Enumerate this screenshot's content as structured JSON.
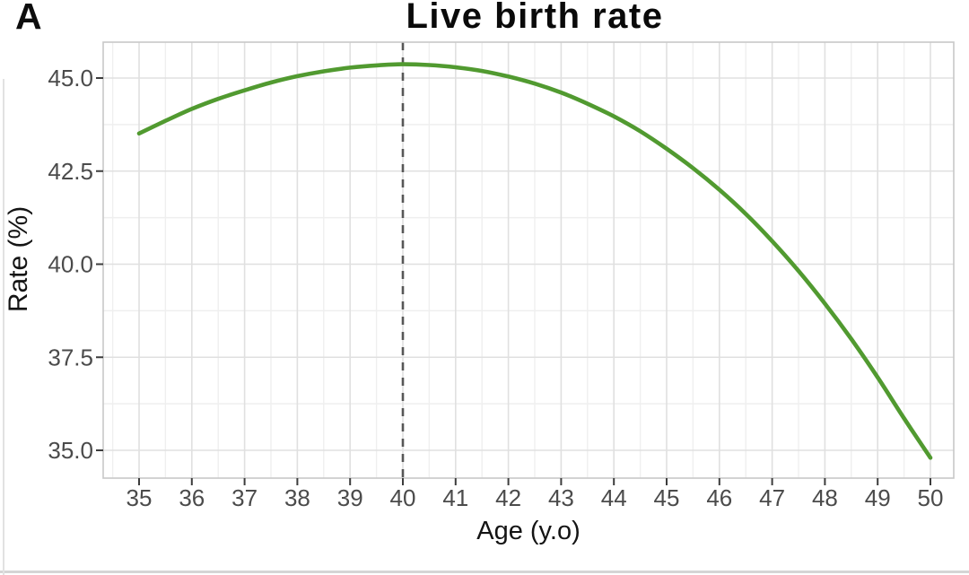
{
  "panel_label": "A",
  "chart_data": {
    "type": "line",
    "title": "Live birth rate",
    "xlabel": "Age (y.o)",
    "ylabel": "Rate (%)",
    "x_ticks": [
      35,
      36,
      37,
      38,
      39,
      40,
      41,
      42,
      43,
      44,
      45,
      46,
      47,
      48,
      49,
      50
    ],
    "y_ticks": [
      35,
      37.5,
      40,
      42.5,
      45
    ],
    "y_tick_labels": [
      "35.0",
      "37.5",
      "40.0",
      "42.5",
      "45.0"
    ],
    "xlim": [
      34.32,
      50.44
    ],
    "ylim": [
      34.25,
      45.96
    ],
    "grid": "major and minor gridlines, light gray, ggplot theme",
    "legend": "none",
    "reference_line": {
      "orientation": "vertical",
      "x": 40,
      "style": "dashed"
    },
    "series": [
      {
        "name": "Live birth rate",
        "color": "#519a30",
        "x": [
          35,
          35.5,
          36,
          36.5,
          37,
          37.5,
          38,
          38.5,
          39,
          39.5,
          40,
          40.5,
          41,
          41.5,
          42,
          42.5,
          43,
          43.5,
          44,
          44.5,
          45,
          45.5,
          46,
          46.5,
          47,
          47.5,
          48,
          48.5,
          49,
          49.5,
          50
        ],
        "y": [
          43.51,
          43.85,
          44.17,
          44.44,
          44.67,
          44.88,
          45.05,
          45.18,
          45.28,
          45.34,
          45.37,
          45.35,
          45.29,
          45.19,
          45.04,
          44.85,
          44.61,
          44.31,
          43.97,
          43.57,
          43.1,
          42.58,
          42.0,
          41.35,
          40.62,
          39.82,
          38.94,
          37.99,
          36.96,
          35.86,
          34.8
        ]
      }
    ],
    "peak_point": {
      "x": 39.8,
      "y": 45.37
    }
  },
  "colors": {
    "curve": "#519a30",
    "reference_line": "#575757",
    "grid_major": "#e0e0e0",
    "grid_minor": "#efefef",
    "panel_border": "#c8c8c8",
    "panel_background": "#ffffff",
    "tick_mark": "#3c3c3c",
    "tick_label": "#4b4b4b",
    "axis_title": "#141414",
    "title": "#0a0a0a"
  }
}
